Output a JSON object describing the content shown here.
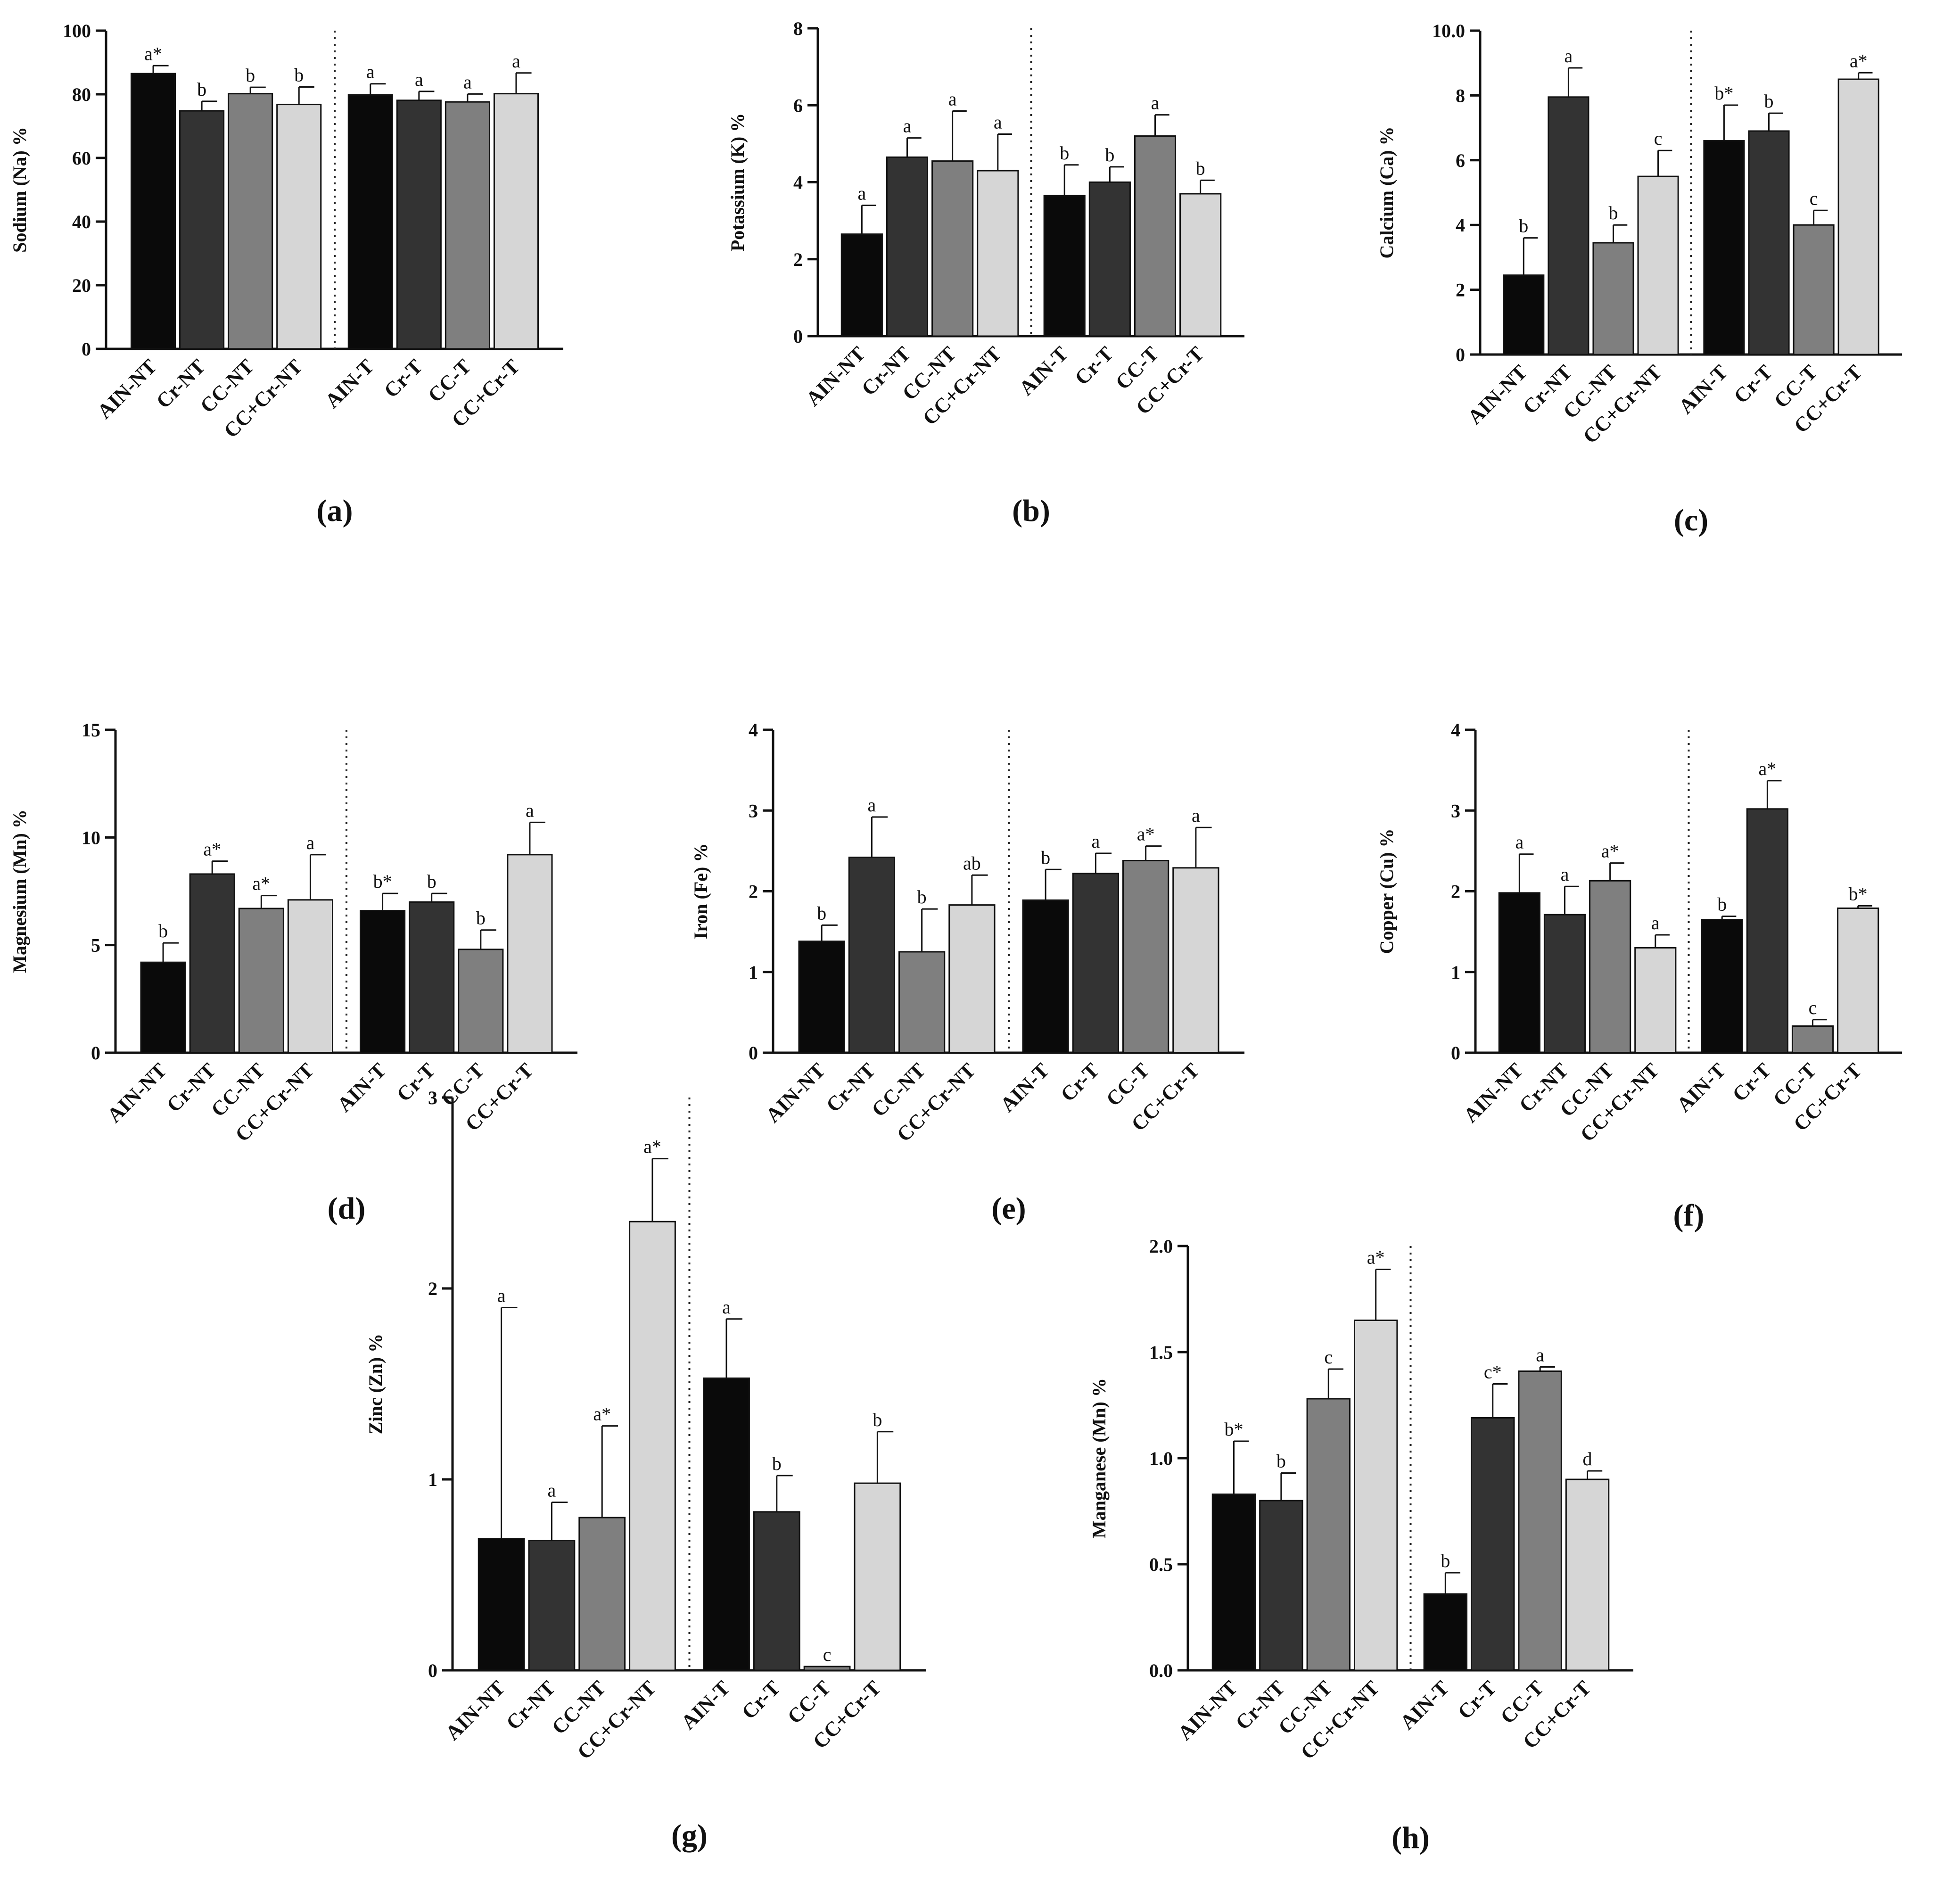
{
  "figure": {
    "colors": [
      "#0a0a0a",
      "#333333",
      "#7f7f7f",
      "#d6d6d6"
    ]
  },
  "chart_data": [
    {
      "type": "bar",
      "panel": "(a)",
      "ylabel": "Sodium (Na) %",
      "ylim": [
        0,
        100
      ],
      "yticks": [
        "0",
        "20",
        "40",
        "60",
        "80",
        "100"
      ],
      "categories": [
        "AIN-NT",
        "Cr-NT",
        "CC-NT",
        "CC+Cr-NT",
        "AIN-T",
        "Cr-T",
        "CC-T",
        "CC+Cr-T"
      ],
      "values": [
        86.5,
        74.8,
        80.2,
        76.8,
        79.8,
        78.1,
        77.6,
        80.2
      ],
      "errors": [
        2.5,
        3.0,
        2.0,
        5.5,
        3.5,
        2.8,
        2.5,
        6.5
      ],
      "significance": [
        "a*",
        "b",
        "b",
        "b",
        "a",
        "a",
        "a",
        "a"
      ]
    },
    {
      "type": "bar",
      "panel": "(b)",
      "ylabel": "Potassium (K) %",
      "ylim": [
        0,
        8
      ],
      "yticks": [
        "0",
        "2",
        "4",
        "6",
        "8"
      ],
      "categories": [
        "AIN-NT",
        "Cr-NT",
        "CC-NT",
        "CC+Cr-NT",
        "AIN-T",
        "Cr-T",
        "CC-T",
        "CC+Cr-T"
      ],
      "values": [
        2.65,
        4.65,
        4.55,
        4.3,
        3.65,
        4.0,
        5.2,
        3.7
      ],
      "errors": [
        0.75,
        0.5,
        1.3,
        0.95,
        0.8,
        0.4,
        0.55,
        0.35
      ],
      "significance": [
        "a",
        "a",
        "a",
        "a",
        "b",
        "b",
        "a",
        "b"
      ]
    },
    {
      "type": "bar",
      "panel": "(c)",
      "ylabel": "Calcium (Ca) %",
      "ylim": [
        0,
        10
      ],
      "yticks": [
        "0",
        "2",
        "4",
        "6",
        "8",
        "10.0"
      ],
      "categories": [
        "AIN-NT",
        "Cr-NT",
        "CC-NT",
        "CC+Cr-NT",
        "AIN-T",
        "Cr-T",
        "CC-T",
        "CC+Cr-T"
      ],
      "values": [
        2.45,
        7.95,
        3.45,
        5.5,
        6.6,
        6.9,
        4.0,
        8.5
      ],
      "errors": [
        1.15,
        0.9,
        0.55,
        0.8,
        1.1,
        0.55,
        0.45,
        0.2
      ],
      "significance": [
        "b",
        "a",
        "b",
        "c",
        "b*",
        "b",
        "c",
        "a*"
      ]
    },
    {
      "type": "bar",
      "panel": "(d)",
      "ylabel": "Magnesium (Mn) %",
      "ylim": [
        0,
        15
      ],
      "yticks": [
        "0",
        "5",
        "10",
        "15"
      ],
      "categories": [
        "AIN-NT",
        "Cr-NT",
        "CC-NT",
        "CC+Cr-NT",
        "AIN-T",
        "Cr-T",
        "CC-T",
        "CC+Cr-T"
      ],
      "values": [
        4.2,
        8.3,
        6.7,
        7.1,
        6.6,
        7.0,
        4.8,
        9.2
      ],
      "errors": [
        0.9,
        0.6,
        0.6,
        2.1,
        0.8,
        0.4,
        0.9,
        1.5
      ],
      "significance": [
        "b",
        "a*",
        "a*",
        "a",
        "b*",
        "b",
        "b",
        "a"
      ]
    },
    {
      "type": "bar",
      "panel": "(e)",
      "ylabel": "Iron (Fe) %",
      "ylim": [
        0,
        4
      ],
      "yticks": [
        "0",
        "1",
        "2",
        "3",
        "4"
      ],
      "categories": [
        "AIN-NT",
        "Cr-NT",
        "CC-NT",
        "CC+Cr-NT",
        "AIN-T",
        "Cr-T",
        "CC-T",
        "CC+Cr-T"
      ],
      "values": [
        1.38,
        2.42,
        1.25,
        1.83,
        1.89,
        2.22,
        2.38,
        2.29
      ],
      "errors": [
        0.2,
        0.5,
        0.53,
        0.37,
        0.38,
        0.25,
        0.18,
        0.5
      ],
      "significance": [
        "b",
        "a",
        "b",
        "ab",
        "b",
        "a",
        "a*",
        "a"
      ]
    },
    {
      "type": "bar",
      "panel": "(f)",
      "ylabel": "Copper (Cu) %",
      "ylim": [
        0,
        4
      ],
      "yticks": [
        "0",
        "1",
        "2",
        "3",
        "4"
      ],
      "categories": [
        "AIN-NT",
        "Cr-NT",
        "CC-NT",
        "CC+Cr-NT",
        "AIN-T",
        "Cr-T",
        "CC-T",
        "CC+Cr-T"
      ],
      "values": [
        1.98,
        1.71,
        2.13,
        1.3,
        1.65,
        3.02,
        0.33,
        1.79
      ],
      "errors": [
        0.48,
        0.35,
        0.22,
        0.16,
        0.04,
        0.35,
        0.08,
        0.03
      ],
      "significance": [
        "a",
        "a",
        "a*",
        "a",
        "b",
        "a*",
        "c",
        "b*"
      ]
    },
    {
      "type": "bar",
      "panel": "(g)",
      "ylabel": "Zinc (Zn) %",
      "ylim": [
        0,
        3
      ],
      "yticks": [
        "0",
        "1",
        "2",
        "3"
      ],
      "categories": [
        "AIN-NT",
        "Cr-NT",
        "CC-NT",
        "CC+Cr-NT",
        "AIN-T",
        "Cr-T",
        "CC-T",
        "CC+Cr-T"
      ],
      "values": [
        0.69,
        0.68,
        0.8,
        2.35,
        1.53,
        0.83,
        0.02,
        0.98
      ],
      "errors": [
        1.21,
        0.2,
        0.48,
        0.33,
        0.31,
        0.19,
        0.0,
        0.27
      ],
      "significance": [
        "a",
        "a",
        "a*",
        "a*",
        "a",
        "b",
        "c",
        "b"
      ]
    },
    {
      "type": "bar",
      "panel": "(h)",
      "ylabel": "Manganese (Mn) %",
      "ylim": [
        0,
        2.0
      ],
      "yticks": [
        "0.0",
        "0.5",
        "1.0",
        "1.5",
        "2.0"
      ],
      "categories": [
        "AIN-NT",
        "Cr-NT",
        "CC-NT",
        "CC+Cr-NT",
        "AIN-T",
        "Cr-T",
        "CC-T",
        "CC+Cr-T"
      ],
      "values": [
        0.83,
        0.8,
        1.28,
        1.65,
        0.36,
        1.19,
        1.41,
        0.9
      ],
      "errors": [
        0.25,
        0.13,
        0.14,
        0.24,
        0.1,
        0.16,
        0.02,
        0.04
      ],
      "significance": [
        "b*",
        "b",
        "c",
        "a*",
        "b",
        "c*",
        "a",
        "d"
      ]
    }
  ]
}
